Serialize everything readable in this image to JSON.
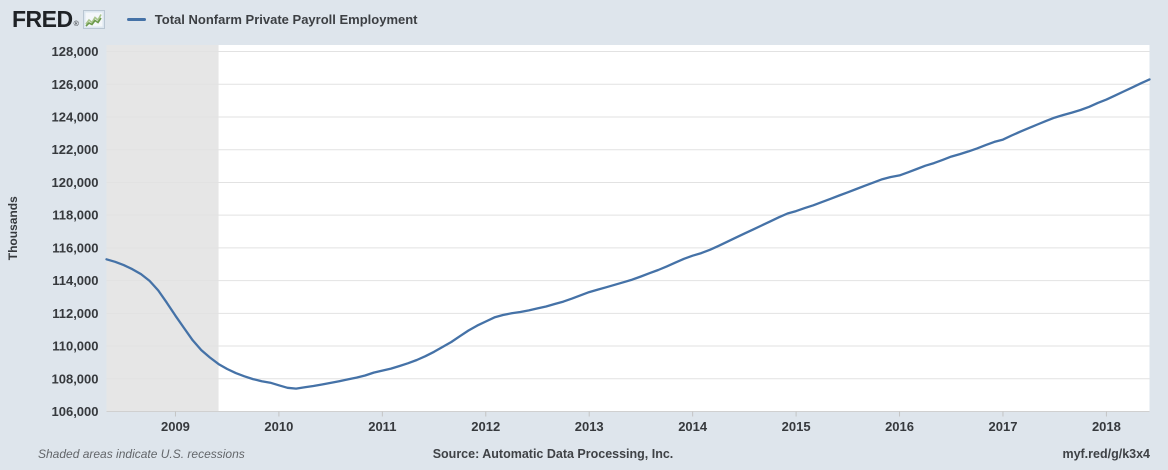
{
  "header": {
    "logo_text": "FRED",
    "registered_mark": "®",
    "series_title": "Total Nonfarm Private Payroll Employment"
  },
  "footer": {
    "recession_note": "Shaded areas indicate U.S. recessions",
    "source": "Source: Automatic Data Processing, Inc.",
    "shortlink": "myf.red/g/k3x4"
  },
  "colors": {
    "page_background": "#dee5ec",
    "plot_background": "#ffffff",
    "gridline": "#e2e2e2",
    "axis_line": "#d0d0d0",
    "axis_tick": "#c4c4c4",
    "recession_shading": "#e6e6e6",
    "series_line": "#4572a7",
    "text_dark": "#36393d"
  },
  "chart_data": {
    "type": "line",
    "title": "Total Nonfarm Private Payroll Employment",
    "xlabel": "",
    "ylabel": "Thousands",
    "ylim": [
      106000,
      128400
    ],
    "y_ticks": [
      106000,
      108000,
      110000,
      112000,
      114000,
      116000,
      118000,
      120000,
      122000,
      124000,
      126000,
      128000
    ],
    "x_ticks": [
      "2009",
      "2010",
      "2011",
      "2012",
      "2013",
      "2014",
      "2015",
      "2016",
      "2017",
      "2018"
    ],
    "grid": "horizontal",
    "legend_position": "top-left",
    "frequency": "monthly",
    "x_start": "2008-05",
    "x_end": "2018-06",
    "recession_bands": [
      {
        "start": "2008-05",
        "end": "2009-06"
      }
    ],
    "series": [
      {
        "name": "Total Nonfarm Private Payroll Employment",
        "color": "#4572a7",
        "values": [
          115300,
          115150,
          114950,
          114700,
          114400,
          113980,
          113400,
          112650,
          111850,
          111100,
          110350,
          109750,
          109300,
          108900,
          108600,
          108350,
          108150,
          107980,
          107850,
          107760,
          107600,
          107450,
          107400,
          107480,
          107560,
          107650,
          107750,
          107850,
          107960,
          108070,
          108200,
          108380,
          108500,
          108620,
          108780,
          108950,
          109150,
          109380,
          109650,
          109950,
          110250,
          110600,
          110950,
          111250,
          111500,
          111750,
          111900,
          112000,
          112080,
          112180,
          112300,
          112420,
          112570,
          112720,
          112900,
          113100,
          113300,
          113450,
          113600,
          113750,
          113900,
          114060,
          114250,
          114450,
          114650,
          114870,
          115100,
          115330,
          115520,
          115680,
          115880,
          116120,
          116370,
          116620,
          116870,
          117120,
          117370,
          117620,
          117870,
          118100,
          118250,
          118430,
          118600,
          118800,
          119000,
          119200,
          119400,
          119600,
          119800,
          120000,
          120200,
          120330,
          120430,
          120620,
          120820,
          121020,
          121180,
          121380,
          121580,
          121730,
          121900,
          122080,
          122280,
          122480,
          122620,
          122870,
          123100,
          123320,
          123540,
          123760,
          123960,
          124120,
          124270,
          124430,
          124620,
          124860,
          125060,
          125310,
          125560,
          125810,
          126060,
          126300
        ]
      }
    ]
  }
}
